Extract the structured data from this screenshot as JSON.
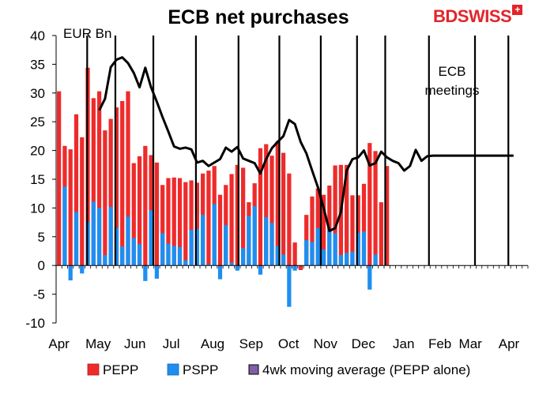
{
  "brand": {
    "name": "BDSWISS",
    "plus_glyph": "+"
  },
  "chart_data": {
    "type": "bar",
    "title": "ECB net purchases",
    "unit_label": "EUR Bn",
    "annotation": [
      "ECB",
      "meetings"
    ],
    "ylim": [
      -10,
      40
    ],
    "yticks": [
      -10,
      -5,
      0,
      5,
      10,
      15,
      20,
      25,
      30,
      35,
      40
    ],
    "xtick_labels": [
      "Apr",
      "May",
      "Jun",
      "Jul",
      "Aug",
      "Sep",
      "Oct",
      "Nov",
      "Dec",
      "Jan",
      "Feb",
      "Mar",
      "Apr"
    ],
    "xtick_positions": [
      0,
      6.8,
      13.2,
      19.5,
      26.7,
      33.4,
      39.9,
      46.3,
      52.9,
      59.9,
      66.2,
      71.5,
      78.2
    ],
    "week_count": 82,
    "series": [
      {
        "name": "PEPP",
        "color": "#ee2b2b",
        "values": [
          30.3,
          20.8,
          20.2,
          26.3,
          22.3,
          34.4,
          29.1,
          30.3,
          23.5,
          25.5,
          27.5,
          28.6,
          30.3,
          17.8,
          19.0,
          20.8,
          19.2,
          17.9,
          14.0,
          15.2,
          15.3,
          15.2,
          14.5,
          14.8,
          14.4,
          16.0,
          16.5,
          17.3,
          12.3,
          14.0,
          15.9,
          17.5,
          17.0,
          11.0,
          14.3,
          20.4,
          21.1,
          19.1,
          21.6,
          19.6,
          16.0,
          4.0,
          -0.8,
          8.8,
          12.0,
          13.4,
          12.3,
          13.9,
          17.4,
          17.5,
          17.5,
          12.2,
          12.2,
          14.2,
          21.3,
          19.9,
          11.0,
          17.3
        ]
      },
      {
        "name": "PSPP",
        "color": "#1e8ff0",
        "values": [
          0.0,
          13.7,
          -2.6,
          9.3,
          -1.4,
          7.6,
          11.1,
          10.0,
          1.8,
          10.2,
          6.6,
          3.3,
          8.5,
          4.8,
          3.7,
          -2.7,
          9.6,
          -2.3,
          5.6,
          3.8,
          3.4,
          3.2,
          0.9,
          6.2,
          6.4,
          8.8,
          0.2,
          10.7,
          -2.4,
          7.0,
          0.5,
          -0.9,
          3.0,
          8.6,
          10.3,
          -1.6,
          8.4,
          7.4,
          3.4,
          1.9,
          -7.2,
          -0.9,
          0.0,
          4.4,
          4.1,
          6.5,
          2.8,
          6.2,
          5.6,
          1.8,
          2.2,
          2.4,
          5.7,
          5.9,
          -4.2,
          1.9,
          0.0,
          0.0
        ]
      },
      {
        "name": "4wk moving average (PEPP alone)",
        "color": "#000000",
        "type": "line",
        "x": [
          7,
          8,
          9,
          10,
          11,
          12,
          13,
          14,
          15,
          16,
          17,
          18,
          19,
          20,
          21,
          22,
          23,
          24,
          25,
          26,
          27,
          28,
          29,
          30,
          31,
          32,
          33,
          34,
          35,
          36,
          37,
          38,
          39,
          40,
          41,
          42,
          43,
          44,
          45,
          46,
          47,
          48,
          49,
          50,
          51,
          52,
          53,
          54,
          55,
          56,
          57,
          58,
          59,
          60,
          61,
          62,
          63,
          64,
          65,
          66,
          67,
          68,
          69,
          70,
          71,
          72,
          73,
          74,
          75,
          76,
          77,
          78,
          79
        ],
        "values": [
          27.0,
          29.0,
          34.5,
          35.8,
          36.2,
          35.2,
          33.5,
          31.0,
          34.4,
          31.0,
          28.5,
          25.8,
          23.3,
          20.7,
          20.3,
          20.5,
          20.2,
          17.9,
          18.2,
          17.3,
          17.9,
          18.5,
          20.5,
          19.8,
          20.6,
          18.6,
          18.2,
          17.8,
          16.0,
          18.5,
          20.4,
          21.5,
          22.5,
          25.3,
          24.6,
          21.5,
          19.5,
          16.5,
          13.6,
          10.0,
          6.0,
          6.5,
          9.3,
          16.5,
          18.5,
          18.8,
          20.0,
          17.4,
          17.8,
          19.8,
          18.8,
          18.2,
          17.8,
          16.5,
          17.3,
          20.1,
          18.2,
          19.0,
          19.1,
          19.1,
          19.1,
          19.1,
          19.1,
          19.1,
          19.1,
          19.1,
          19.1,
          19.1,
          19.1,
          19.1,
          19.1,
          19.1,
          19.1
        ]
      }
    ],
    "bar_weeks": [
      0,
      1,
      2,
      3,
      4,
      5,
      6,
      7,
      8,
      9,
      10,
      11,
      12,
      13,
      14,
      15,
      16,
      17,
      18,
      19,
      20,
      21,
      22,
      23,
      24,
      25,
      26,
      27,
      28,
      29,
      30,
      31,
      32,
      33,
      34,
      35,
      36,
      37,
      38,
      39,
      40,
      41,
      42,
      43,
      44,
      45,
      46,
      47,
      48,
      49,
      50,
      51,
      52,
      53,
      54,
      55,
      56,
      57
    ],
    "meeting_weeks": [
      4.9,
      9.8,
      16.4,
      23.8,
      31.2,
      38.3,
      45.5,
      51.8,
      56.7,
      64.3,
      72.3,
      78.1
    ],
    "legend": [
      "PEPP",
      "PSPP",
      "4wk moving average (PEPP alone)"
    ]
  }
}
